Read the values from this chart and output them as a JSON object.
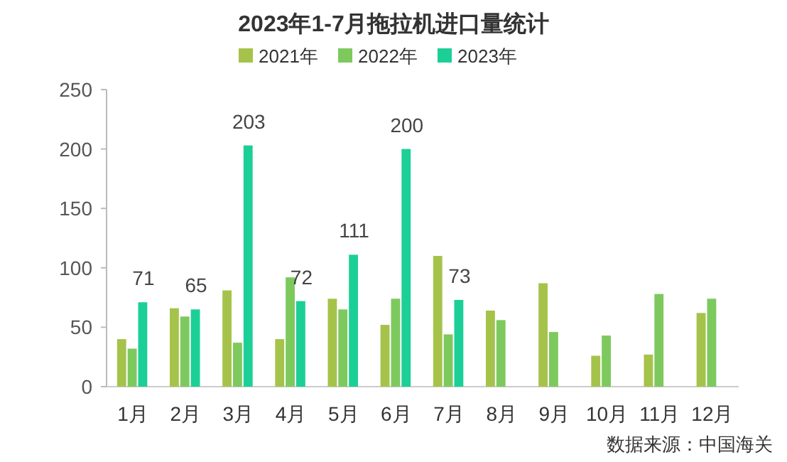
{
  "chart_data": {
    "type": "bar",
    "title": "2023年1-7月拖拉机进口量统计",
    "categories": [
      "1月",
      "2月",
      "3月",
      "4月",
      "5月",
      "6月",
      "7月",
      "8月",
      "9月",
      "10月",
      "11月",
      "12月"
    ],
    "series": [
      {
        "name": "2021年",
        "color": "#a5c34a",
        "values": [
          40,
          66,
          81,
          40,
          74,
          52,
          110,
          64,
          87,
          26,
          27,
          62
        ]
      },
      {
        "name": "2022年",
        "color": "#7dc95e",
        "values": [
          32,
          59,
          37,
          92,
          65,
          74,
          44,
          56,
          46,
          43,
          78,
          74
        ]
      },
      {
        "name": "2023年",
        "color": "#1ccf96",
        "values": [
          71,
          65,
          203,
          72,
          111,
          200,
          73,
          null,
          null,
          null,
          null,
          null
        ],
        "value_labels": [
          "71",
          "65",
          "203",
          "72",
          "111",
          "200",
          "73",
          null,
          null,
          null,
          null,
          null
        ]
      }
    ],
    "ylim": [
      0,
      250
    ],
    "yticks": [
      0,
      50,
      100,
      150,
      200,
      250
    ],
    "legend": "top",
    "grid": false,
    "annotations": [
      "数据来源：中国海关"
    ]
  }
}
